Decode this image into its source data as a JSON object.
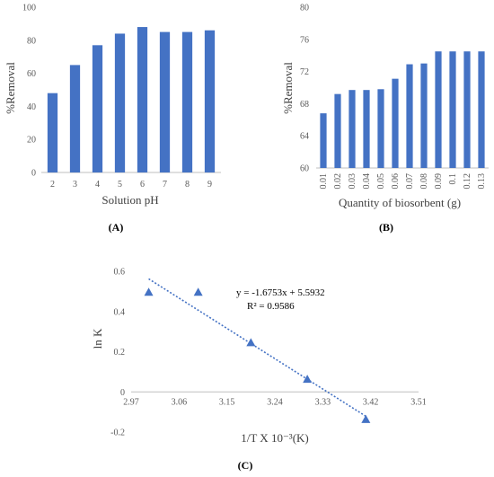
{
  "colors": {
    "bar": "#4472c4",
    "marker": "#4472c4",
    "grid": "#d9d9d9",
    "axis": "#bfbfbf",
    "text": "#595959"
  },
  "chart_data": [
    {
      "id": "A",
      "type": "bar",
      "panel_label": "(A)",
      "categories": [
        "2",
        "3",
        "4",
        "5",
        "6",
        "7",
        "8",
        "9"
      ],
      "values": [
        48,
        65,
        77,
        84,
        88,
        85,
        85,
        86
      ],
      "ylabel": "%Removal",
      "xlabel": "Solution pH",
      "ylim": [
        0,
        100
      ],
      "yticks": [
        "0",
        "20",
        "40",
        "60",
        "80",
        "100"
      ],
      "grid": false
    },
    {
      "id": "B",
      "type": "bar",
      "panel_label": "(B)",
      "categories": [
        "0.01",
        "0.02",
        "0.03",
        "0.04",
        "0.05",
        "0.06",
        "0.07",
        "0.08",
        "0.09",
        "0.1",
        "0.12",
        "0.13"
      ],
      "values": [
        66.8,
        69.2,
        69.7,
        69.7,
        69.8,
        71.1,
        72.9,
        73.0,
        74.5,
        74.5,
        74.5,
        74.5
      ],
      "ylabel": "%Removal",
      "xlabel": "Quantity of biosorbent (g)",
      "ylim": [
        60,
        80
      ],
      "yticks": [
        "60",
        "64",
        "68",
        "72",
        "76",
        "80"
      ],
      "grid": false
    },
    {
      "id": "C",
      "type": "scatter",
      "panel_label": "(C)",
      "x": [
        3.003,
        3.096,
        3.195,
        3.301,
        3.411
      ],
      "y": [
        0.496,
        0.496,
        0.245,
        0.063,
        -0.137
      ],
      "ylabel": "ln K",
      "xlabel": "1/T X 10⁻³(K)",
      "xlim": [
        2.97,
        3.51
      ],
      "ylim": [
        -0.2,
        0.6
      ],
      "xticks": [
        "2.97",
        "3.06",
        "3.15",
        "3.24",
        "3.33",
        "3.42",
        "3.51"
      ],
      "yticks": [
        "-0.2",
        "0",
        "0.2",
        "0.4",
        "0.6"
      ],
      "trendline": {
        "slope": -1.6753,
        "intercept": 5.5932,
        "x_range": [
          3.003,
          3.411
        ]
      },
      "equation": "y = -1.6753x + 5.5932",
      "r_squared": "R² = 0.9586",
      "grid": false
    }
  ]
}
